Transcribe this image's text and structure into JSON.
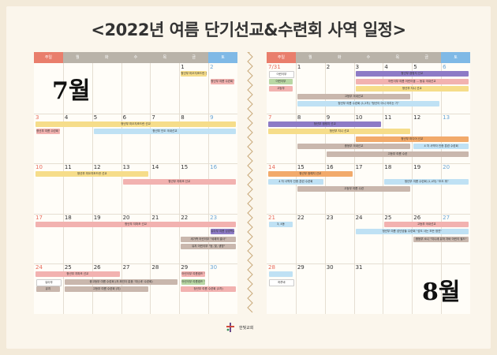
{
  "title": "<2022년 여름 단기선교&수련회 사역 일정>",
  "weekdays": [
    "주일",
    "월",
    "화",
    "수",
    "목",
    "금",
    "토"
  ],
  "colors": {
    "sun_header": "#e97e6c",
    "weekday_header": "#b9b3a9",
    "sat_header": "#7fb9e6",
    "yellow": "#f6dd8a",
    "blue": "#bfe1f4",
    "pink": "#f2b2b0",
    "purple": "#8d7bc6",
    "orange": "#f2aa6b",
    "taupe": "#c9b7ad",
    "green": "#b8d7a4"
  },
  "july": {
    "label": "7월",
    "days": [
      "",
      "",
      "",
      "",
      "",
      "1",
      "2",
      "3",
      "4",
      "5",
      "6",
      "7",
      "8",
      "9",
      "10",
      "11",
      "12",
      "13",
      "14",
      "15",
      "16",
      "17",
      "18",
      "19",
      "20",
      "21",
      "22",
      "23",
      "24",
      "25",
      "26",
      "27",
      "28",
      "29",
      "30"
    ],
    "events": [
      {
        "text": "청년부 미오지조드란 선교",
        "row": 0,
        "c0": 5,
        "c1": 6,
        "line": 0,
        "color": "yellow"
      },
      {
        "text": "청년부 미오지조드란 선교",
        "row": 1,
        "c0": 0,
        "c1": 7,
        "line": 0,
        "color": "yellow"
      },
      {
        "text": "청년부 인도 국내선교",
        "row": 1,
        "c0": 2,
        "c1": 7,
        "line": 1,
        "color": "blue"
      },
      {
        "text": "청년부 미오지조드란 선교",
        "row": 2,
        "c0": 0,
        "c1": 4,
        "line": 0,
        "color": "yellow"
      },
      {
        "text": "청년부 지파조 선교",
        "row": 2,
        "c0": 3,
        "c1": 7,
        "line": 1,
        "color": "pink"
      },
      {
        "text": "청년부 지파조 선교",
        "row": 3,
        "c0": 0,
        "c1": 7,
        "line": 0,
        "color": "pink"
      },
      {
        "text": "청년부 지파조 선교",
        "row": 4,
        "c0": 0,
        "c1": 3,
        "line": 0,
        "color": "pink"
      },
      {
        "text": "중고등부 여름 수련회 (저 짜인더 없음 '지닌새' 수련회)",
        "row": 4,
        "c0": 1,
        "c1": 5,
        "line": 1,
        "color": "taupe"
      },
      {
        "text": "고등부 여름 수련회 (지)",
        "row": 4,
        "c0": 1,
        "c1": 4,
        "line": 2,
        "color": "taupe"
      },
      {
        "text": "새가족 어린이부 \"세례의 출사\"",
        "row": 3,
        "c0": 5,
        "c1": 7,
        "line": 2,
        "color": "taupe"
      },
      {
        "text": "유치 어린이부 \"등, 빛, 생명\"",
        "row": 3,
        "c0": 5,
        "c1": 7,
        "line": 3,
        "color": "taupe"
      },
      {
        "text": "청년부 여름 수련회 (2차)",
        "row": 4,
        "c0": 5,
        "c1": 7,
        "line": 2,
        "color": "pink"
      }
    ],
    "boxes": [
      {
        "text": "청년부 여름 수련회 '여름의 하이라, 하나님'",
        "row": 0,
        "col": 6,
        "line": 1,
        "color": "pink"
      },
      {
        "text": "청년부 여름 수련회 '여름의 하이라'",
        "row": 1,
        "col": 0,
        "line": 1,
        "color": "pink"
      },
      {
        "text": "유아부 여름 성경학교 \"빛의 만남\"",
        "row": 3,
        "col": 6,
        "line": 1,
        "color": "purple"
      },
      {
        "text": "어린이부 여름캠프 \"우리 어린이 캠프\"",
        "row": 4,
        "col": 5,
        "line": 0,
        "color": "pink"
      },
      {
        "text": "유아부",
        "row": 4,
        "col": 0,
        "line": 1,
        "color": "white"
      },
      {
        "text": "유치",
        "row": 4,
        "col": 0,
        "line": 2,
        "color": "taupe"
      },
      {
        "text": "어린이부 여름캠프 \"Come & Christian\"",
        "row": 4,
        "col": 5,
        "line": 1,
        "color": "green"
      }
    ]
  },
  "august": {
    "label": "8월",
    "days": [
      "7/31",
      "1",
      "2",
      "3",
      "4",
      "5",
      "6",
      "7",
      "8",
      "9",
      "10",
      "11",
      "12",
      "13",
      "14",
      "15",
      "16",
      "17",
      "18",
      "19",
      "20",
      "21",
      "22",
      "23",
      "24",
      "25",
      "26",
      "27",
      "28",
      "29",
      "30",
      "31",
      "",
      "",
      ""
    ],
    "events": [
      {
        "text": "청년부 캠핑지 선교",
        "row": 0,
        "c0": 3,
        "c1": 7,
        "line": 0,
        "color": "purple"
      },
      {
        "text": "어린이부 여름 어린이캠 ... 동유 국내선교",
        "row": 0,
        "c0": 3,
        "c1": 7,
        "line": 1,
        "color": "pink"
      },
      {
        "text": "청년부 지니 선교",
        "row": 0,
        "c0": 3,
        "c1": 7,
        "line": 2,
        "color": "yellow"
      },
      {
        "text": "고등부 국내선교",
        "row": 0,
        "c0": 1,
        "c1": 5,
        "line": 3,
        "color": "taupe"
      },
      {
        "text": "청년부 여름 수련회 (1,2차) \"청년이 아니 어리는 기\"",
        "row": 0,
        "c0": 1,
        "c1": 6,
        "line": 4,
        "color": "blue"
      },
      {
        "text": "청년부 캠핑지 선교",
        "row": 1,
        "c0": 0,
        "c1": 4,
        "line": 0,
        "color": "purple"
      },
      {
        "text": "청년부 지니 선교",
        "row": 1,
        "c0": 0,
        "c1": 5,
        "line": 1,
        "color": "yellow"
      },
      {
        "text": "청년부 미디어 선교",
        "row": 1,
        "c0": 3,
        "c1": 7,
        "line": 2,
        "color": "orange"
      },
      {
        "text": "중등부 국내선교",
        "row": 1,
        "c0": 1,
        "c1": 5,
        "line": 3,
        "color": "taupe"
      },
      {
        "text": "4 차 사역자 인증 훈련 수련회",
        "row": 1,
        "c0": 5,
        "c1": 7,
        "line": 3,
        "color": "blue"
      },
      {
        "text": "고등부 여름 수련",
        "row": 1,
        "c0": 2,
        "c1": 7,
        "line": 4,
        "color": "taupe"
      },
      {
        "text": "청년부 정예지 선교",
        "row": 2,
        "c0": 0,
        "c1": 3,
        "line": 0,
        "color": "orange"
      },
      {
        "text": "4 차 사역자 인증 훈련 수련회",
        "row": 2,
        "c0": 0,
        "c1": 2,
        "line": 1,
        "color": "blue"
      },
      {
        "text": "청년부 여름 수련회 (1,4차) \"초도 뭐\"",
        "row": 2,
        "c0": 4,
        "c1": 7,
        "line": 1,
        "color": "blue"
      },
      {
        "text": "고등부 여름 수련",
        "row": 2,
        "c0": 1,
        "c1": 5,
        "line": 2,
        "color": "taupe"
      },
      {
        "text": "고등부 국내선교",
        "row": 3,
        "c0": 4,
        "c1": 7,
        "line": 0,
        "color": "pink"
      },
      {
        "text": "청년부 여름 성년공들 수련회 \"성도 사는 모든 정연\"",
        "row": 3,
        "c0": 3,
        "c1": 7,
        "line": 1,
        "color": "blue"
      },
      {
        "text": "중등부 소니 \"지니새 유하 자바 어린이 필드\"",
        "row": 3,
        "c0": 5,
        "c1": 7,
        "line": 2,
        "color": "taupe"
      }
    ],
    "boxes": [
      {
        "text": "어린이부",
        "row": 0,
        "col": 0,
        "line": 0,
        "color": "white"
      },
      {
        "text": "어린이부",
        "row": 0,
        "col": 0,
        "line": 1,
        "color": "green"
      },
      {
        "text": "고등부",
        "row": 0,
        "col": 0,
        "line": 2,
        "color": "pink"
      },
      {
        "text": "3, 4동",
        "row": 3,
        "col": 0,
        "line": 0,
        "color": "blue"
      },
      {
        "text": "",
        "row": 4,
        "col": 0,
        "line": 0,
        "color": "blue"
      },
      {
        "text": "하루바",
        "row": 4,
        "col": 0,
        "line": 1,
        "color": "white"
      }
    ]
  },
  "church": {
    "name": "한빛교회"
  }
}
